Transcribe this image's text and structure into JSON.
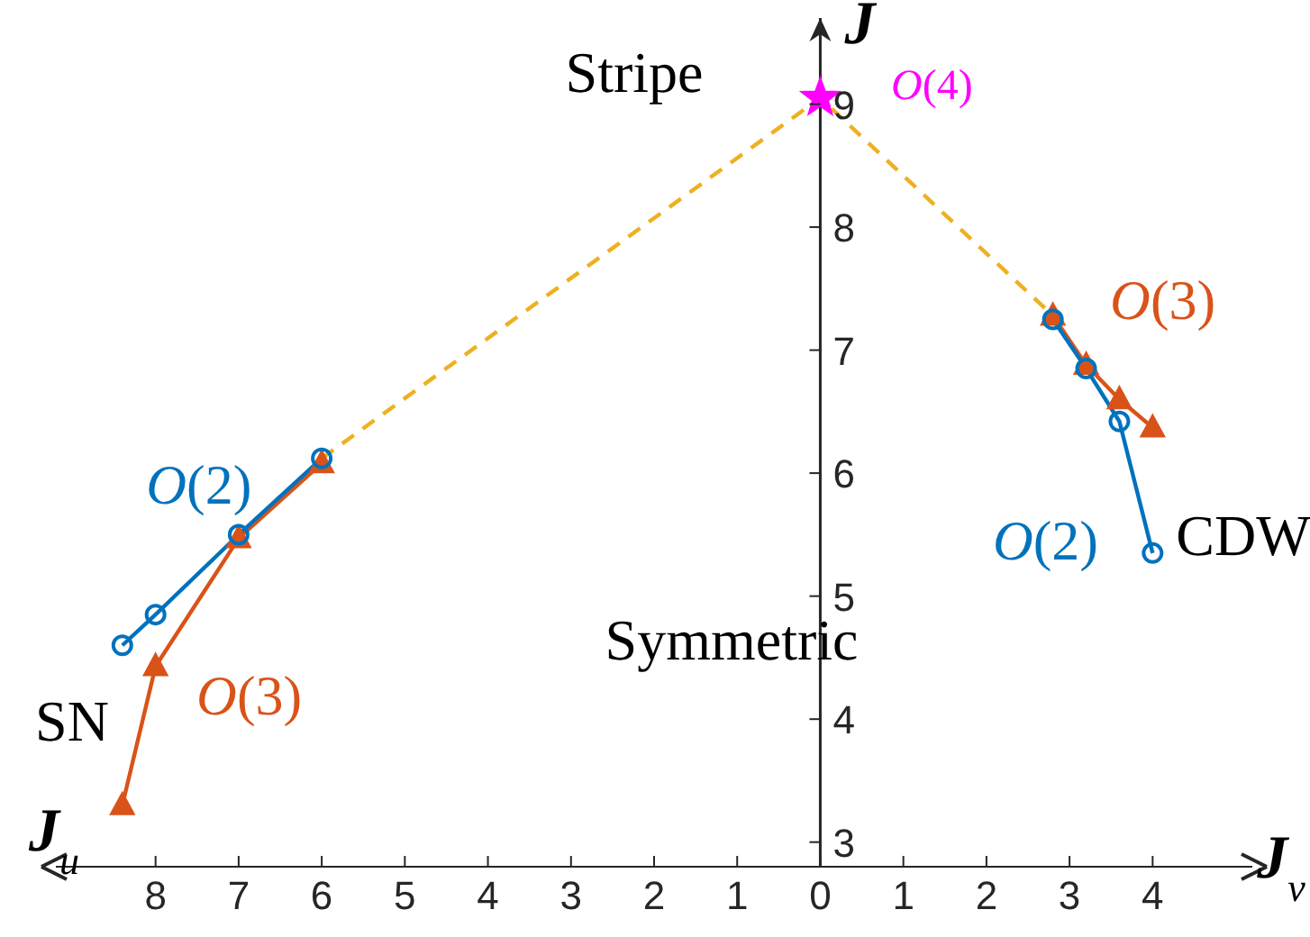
{
  "chart_data": {
    "type": "line",
    "xlabel": "J$_{v}$",
    "ylabel": "J",
    "xlim": [
      -9.2,
      5.2
    ],
    "ylim": [
      2.8,
      9.7
    ],
    "xticks": [
      {
        "value": -8,
        "label": "8"
      },
      {
        "value": -7,
        "label": "7"
      },
      {
        "value": -6,
        "label": "6"
      },
      {
        "value": -5,
        "label": "5"
      },
      {
        "value": -4,
        "label": "4"
      },
      {
        "value": -3,
        "label": "3"
      },
      {
        "value": -2,
        "label": "2"
      },
      {
        "value": -1,
        "label": "1"
      },
      0,
      1,
      2,
      3,
      4
    ],
    "yticks": [
      3,
      4,
      5,
      6,
      7,
      8,
      9
    ],
    "series": [
      {
        "name": "O(2)",
        "color": "#0072bd",
        "marker": "circle",
        "x": [
          -8.4,
          -8,
          -7,
          -6
        ],
        "values": [
          4.6,
          4.85,
          5.5,
          6.12
        ]
      },
      {
        "name": "O(3)",
        "color": "#d95319",
        "marker": "triangle",
        "x": [
          -8.4,
          -8,
          -7,
          -6
        ],
        "values": [
          3.3,
          4.43,
          5.47,
          6.08
        ]
      },
      {
        "name": "O(2)",
        "color": "#0072bd",
        "marker": "circle",
        "x": [
          2.8,
          3.2,
          3.6,
          4
        ],
        "values": [
          7.25,
          6.85,
          6.42,
          5.35
        ]
      },
      {
        "name": "O(3)",
        "color": "#d95319",
        "marker": "triangle",
        "x": [
          2.8,
          3.2,
          3.6,
          4
        ],
        "values": [
          7.28,
          6.88,
          6.6,
          6.37
        ]
      },
      {
        "color": "#edb120",
        "marker": "none",
        "line_style": "dashed",
        "x": [
          -6,
          0,
          2.8
        ],
        "values": [
          6.12,
          9.05,
          7.28
        ]
      },
      {
        "name": "O(4)",
        "color": "#ff00ff",
        "marker": "star",
        "x": [
          0
        ],
        "values": [
          9.05
        ]
      }
    ],
    "annotations": [
      "Stripe",
      "Symmetric",
      "SN",
      "CDW",
      "J$_{u}$"
    ]
  }
}
